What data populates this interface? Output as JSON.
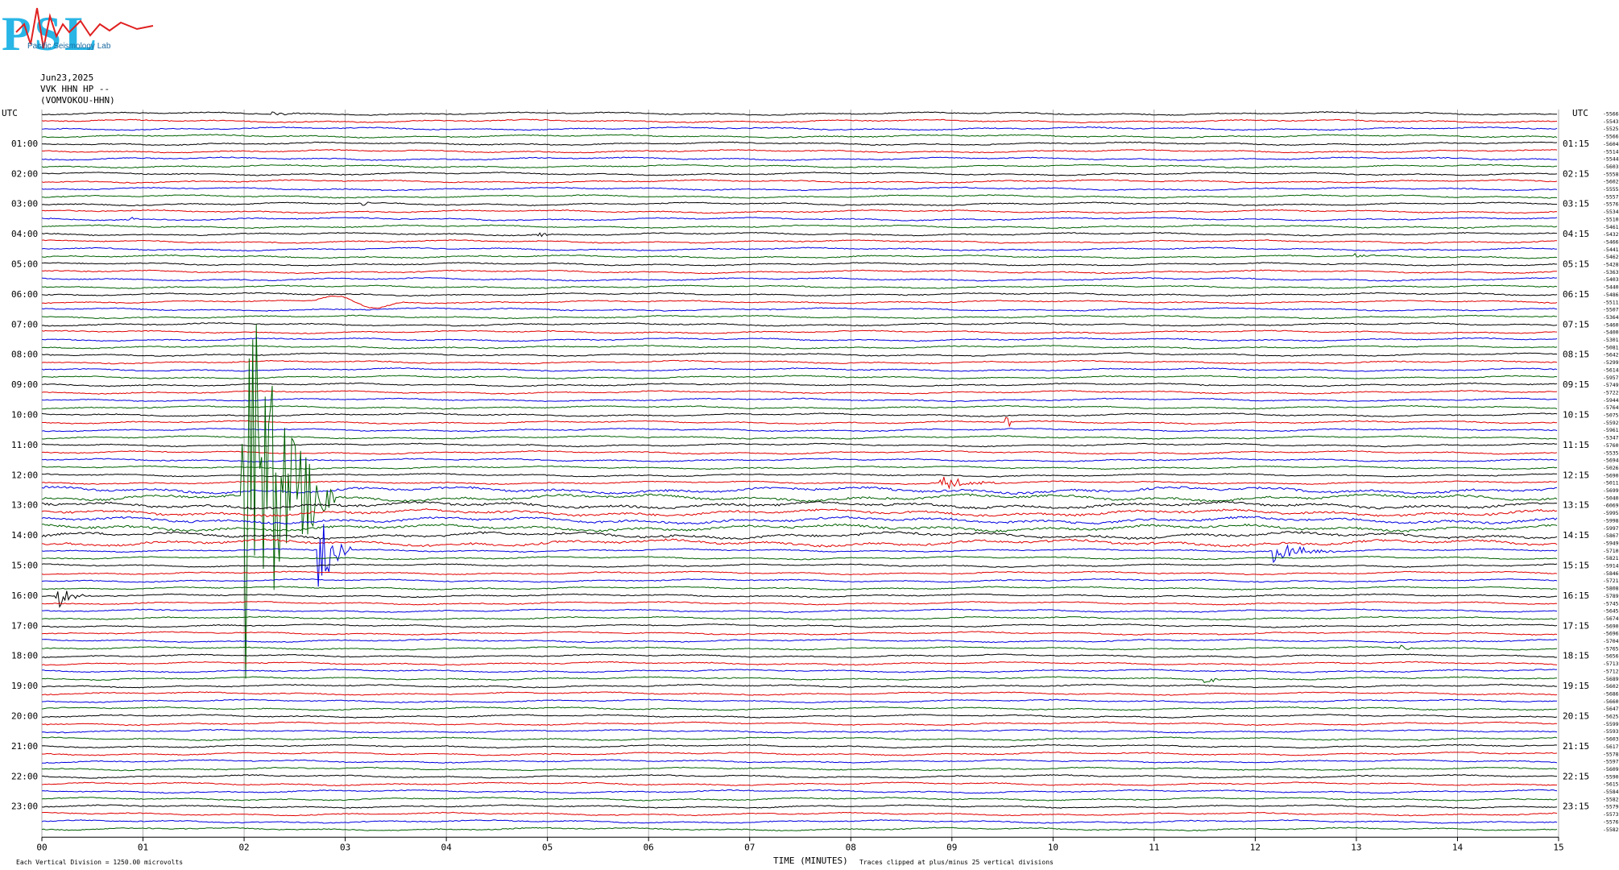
{
  "logo": {
    "letters": "PSL",
    "text": "Pacific Seismology Lab"
  },
  "header": {
    "date": "Jun23,2025",
    "channel": "VVK HHN HP --",
    "station": "(VOMVOKOU-HHN)"
  },
  "labels": {
    "utc_left": "UTC",
    "utc_right": "UTC",
    "x_axis_title": "TIME (MINUTES)",
    "footer_scale": "Each Vertical Division = 1250.00 microvolts",
    "footer_clip": "Traces clipped at plus/minus 25 vertical divisions"
  },
  "chart_data": {
    "type": "line",
    "title": "",
    "xlabel": "TIME (MINUTES)",
    "ylabel": "UTC",
    "xlim": [
      0,
      15
    ],
    "x_ticks": [
      "00",
      "01",
      "02",
      "03",
      "04",
      "05",
      "06",
      "07",
      "08",
      "09",
      "10",
      "11",
      "12",
      "13",
      "14",
      "15"
    ],
    "grid": true,
    "trace_colors": [
      "#000000",
      "#e00000",
      "#0000e0",
      "#006000"
    ],
    "hour_labels_left": [
      "01:00",
      "02:00",
      "03:00",
      "04:00",
      "05:00",
      "06:00",
      "07:00",
      "08:00",
      "09:00",
      "10:00",
      "11:00",
      "12:00",
      "13:00",
      "14:00",
      "15:00",
      "16:00",
      "17:00",
      "18:00",
      "19:00",
      "20:00",
      "21:00",
      "22:00",
      "23:00"
    ],
    "hour_labels_right": [
      "01:15",
      "02:15",
      "03:15",
      "04:15",
      "05:15",
      "06:15",
      "07:15",
      "08:15",
      "09:15",
      "10:15",
      "11:15",
      "12:15",
      "13:15",
      "14:15",
      "15:15",
      "16:15",
      "17:15",
      "18:15",
      "19:15",
      "20:15",
      "21:15",
      "22:15",
      "23:15"
    ],
    "trace_offsets": [
      -5566,
      -5543,
      -5525,
      -5566,
      -5604,
      -5514,
      -5544,
      -5603,
      -5558,
      -5602,
      -5555,
      -5557,
      -5576,
      -5534,
      -5510,
      -5461,
      -5432,
      -5466,
      -5441,
      -5462,
      -5428,
      -5363,
      -5403,
      -5440,
      -5486,
      -5511,
      -5507,
      -5364,
      -5460,
      -5400,
      -5301,
      -5081,
      -5642,
      -5299,
      -5614,
      -5957,
      -5749,
      -5722,
      -5944,
      -5764,
      -5075,
      -5592,
      -5961,
      -5347,
      -5760,
      -5535,
      -5694,
      -5026,
      -5690,
      -5011,
      -5699,
      -5040,
      -6069,
      -5995,
      -5998,
      -5997,
      -5867,
      -5949,
      -5710,
      -5821,
      -5914,
      -5846,
      -5721,
      -5808,
      -5789,
      -5745,
      -5645,
      -5674,
      -5690,
      -5696,
      -5704,
      -5765,
      -5656,
      -5713,
      -5712,
      -5689,
      -5602,
      -5686,
      -5660,
      -5647,
      -5625,
      -5599,
      -5593,
      -5603,
      -5617,
      -5578,
      -5597,
      -5609,
      -5590,
      -5615,
      -5584,
      -5582,
      -5579,
      -5573,
      -5576,
      -5582
    ],
    "events": [
      {
        "trace": 0,
        "minute": 2.3,
        "amp": 4,
        "dur": 0.3
      },
      {
        "trace": 12,
        "minute": 3.2,
        "amp": 3,
        "dur": 0.1
      },
      {
        "trace": 14,
        "minute": 0.9,
        "amp": 3,
        "dur": 0.1
      },
      {
        "trace": 16,
        "minute": 4.9,
        "amp": 5,
        "dur": 0.2
      },
      {
        "trace": 19,
        "minute": 13.0,
        "amp": 4,
        "dur": 0.2
      },
      {
        "trace": 41,
        "minute": 9.55,
        "amp": 8,
        "dur": 0.1
      },
      {
        "trace": 49,
        "minute": 8.9,
        "amp": 10,
        "dur": 0.6
      },
      {
        "trace": 51,
        "minute": 2.0,
        "amp": 340,
        "dur": 0.9
      },
      {
        "trace": 58,
        "minute": 2.75,
        "amp": 60,
        "dur": 0.3
      },
      {
        "trace": 58,
        "minute": 12.2,
        "amp": 14,
        "dur": 0.6
      },
      {
        "trace": 64,
        "minute": 0.15,
        "amp": 18,
        "dur": 0.3
      },
      {
        "trace": 71,
        "minute": 13.45,
        "amp": 4,
        "dur": 0.2
      },
      {
        "trace": 75,
        "minute": 11.5,
        "amp": 10,
        "dur": 0.15
      }
    ],
    "long_period_wave": {
      "trace": 25,
      "minute_start": 2.6,
      "minute_end": 3.6,
      "amp": 10
    }
  }
}
